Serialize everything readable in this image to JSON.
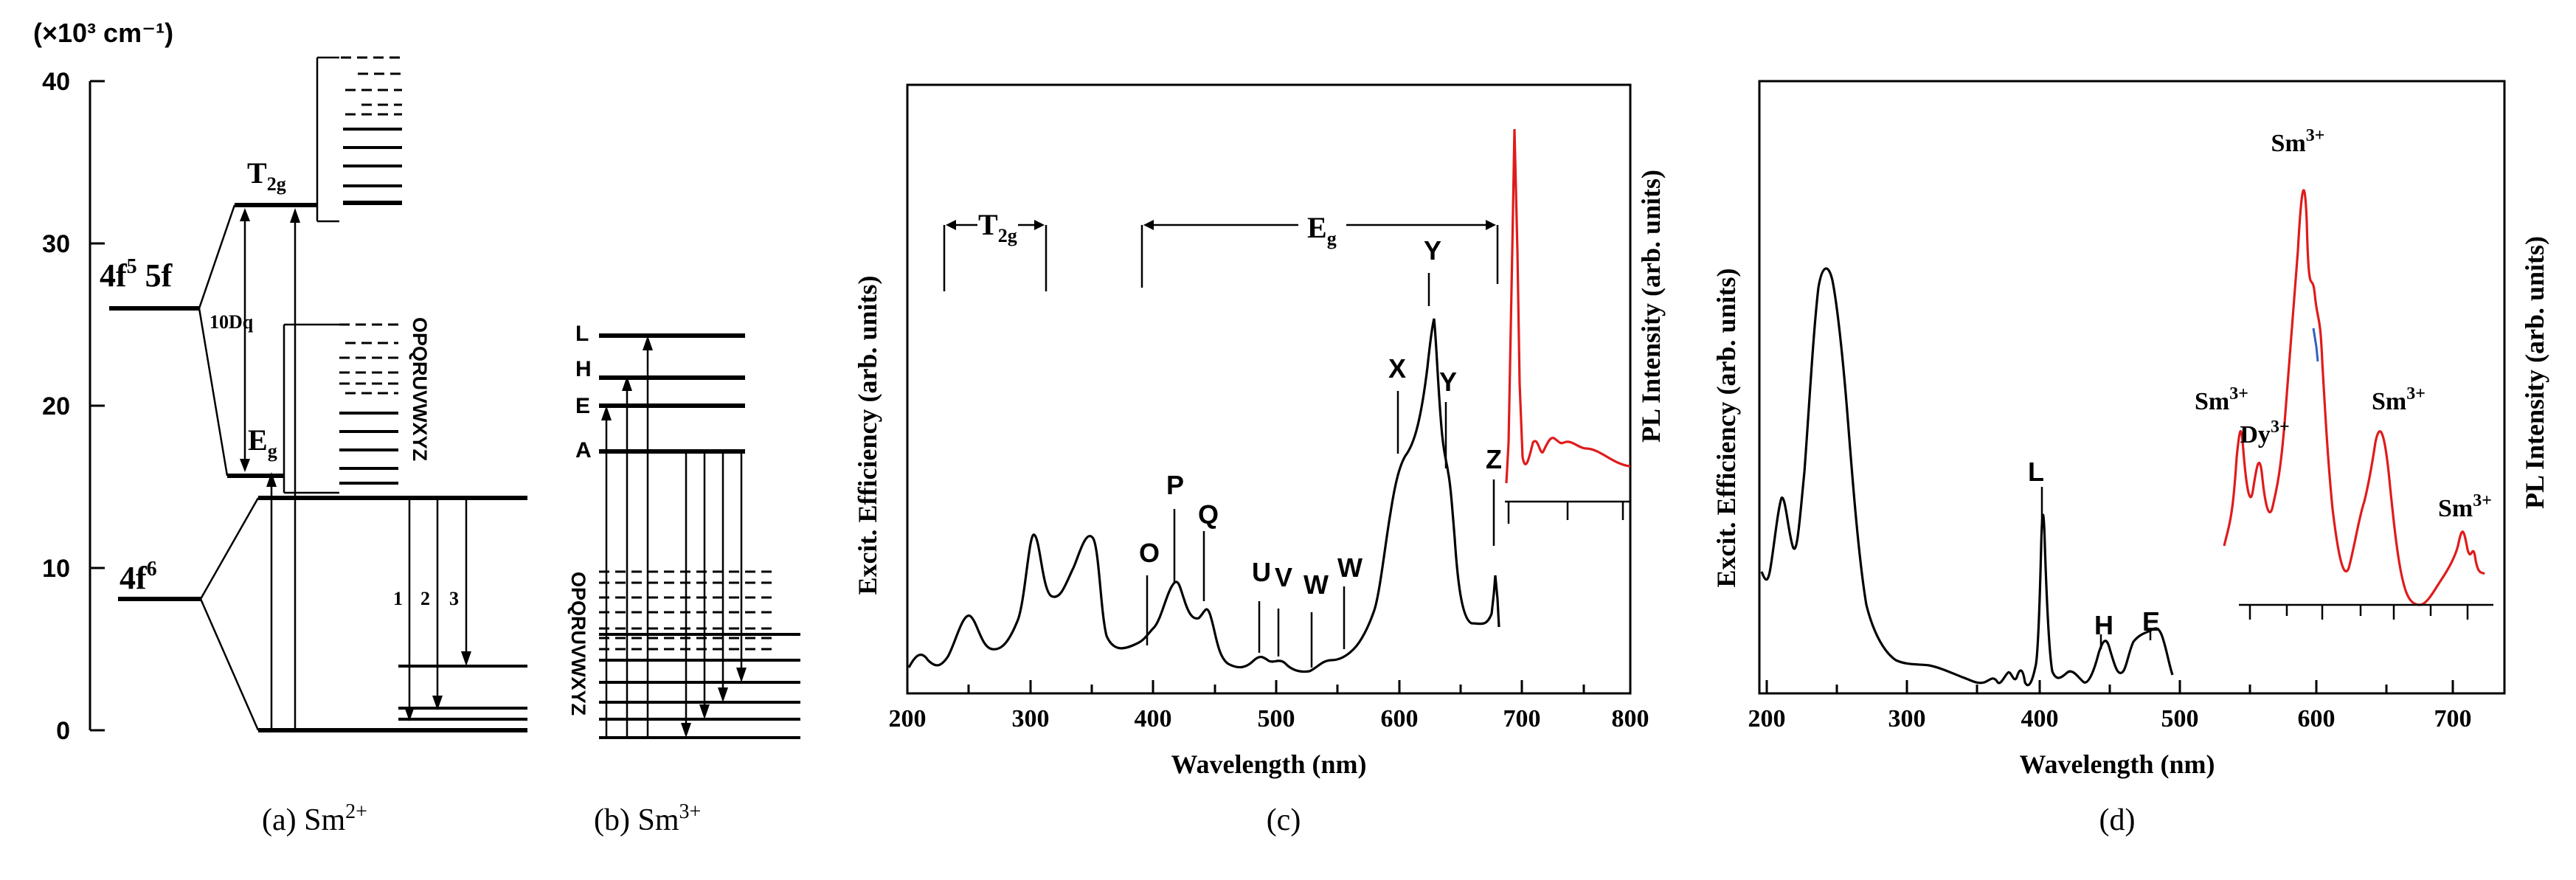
{
  "panel_a": {
    "unit_label": "(×10³ cm⁻¹)",
    "y_ticks": [
      "40",
      "30",
      "20",
      "10",
      "0"
    ],
    "config_5f": "4f",
    "config_5f_sup": "5",
    "config_5f_tail": " 5f",
    "config_4f6": "4f",
    "config_4f6_sup": "6",
    "t2g_main": "T",
    "t2g_sub": "2g",
    "eg_main": "E",
    "eg_sub": "g",
    "tendq": "10Dq",
    "levels_letters": [
      "O",
      "P",
      "Q",
      "R",
      "U",
      "V",
      "W",
      "X",
      "Y",
      "Z"
    ],
    "arrow_labels": [
      "1",
      "2",
      "3"
    ],
    "caption_prefix": "(a) Sm",
    "caption_sup": "2+"
  },
  "panel_b": {
    "labels": [
      "L",
      "H",
      "E",
      "A"
    ],
    "levels_letters": [
      "O",
      "P",
      "Q",
      "R",
      "U",
      "V",
      "W",
      "X",
      "Y",
      "Z"
    ],
    "caption_prefix": "(b) Sm",
    "caption_sup": "3+"
  },
  "panel_c": {
    "ylabel_left": "Excit. Efficiency (arb. units)",
    "ylabel_right": "PL Intensity (arb. units)",
    "xlabel": "Wavelength (nm)",
    "x_ticks": [
      "200",
      "300",
      "400",
      "500",
      "600",
      "700",
      "800"
    ],
    "t2g_main": "T",
    "t2g_sub": "2g",
    "eg_main": "E",
    "eg_sub": "g",
    "peak_labels": [
      "O",
      "P",
      "Q",
      "U",
      "V",
      "W",
      "W",
      "X",
      "Y",
      "Y",
      "Z"
    ],
    "caption": "(c)",
    "line_color": "#000000",
    "inset_color": "#e01b1b"
  },
  "panel_d": {
    "ylabel_left": "Excit. Efficiency (arb. units)",
    "ylabel_right": "PL Intensity (arb. units)",
    "xlabel": "Wavelength (nm)",
    "x_ticks": [
      "200",
      "300",
      "400",
      "500",
      "600",
      "700"
    ],
    "peak_labels": [
      "L",
      "H",
      "E"
    ],
    "ion_sm": "Sm",
    "ion_sm_sup": "3+",
    "ion_dy": "Dy",
    "ion_dy_sup": "3+",
    "caption": "(d)",
    "line_color": "#000000",
    "inset_color": "#e01b1b"
  }
}
